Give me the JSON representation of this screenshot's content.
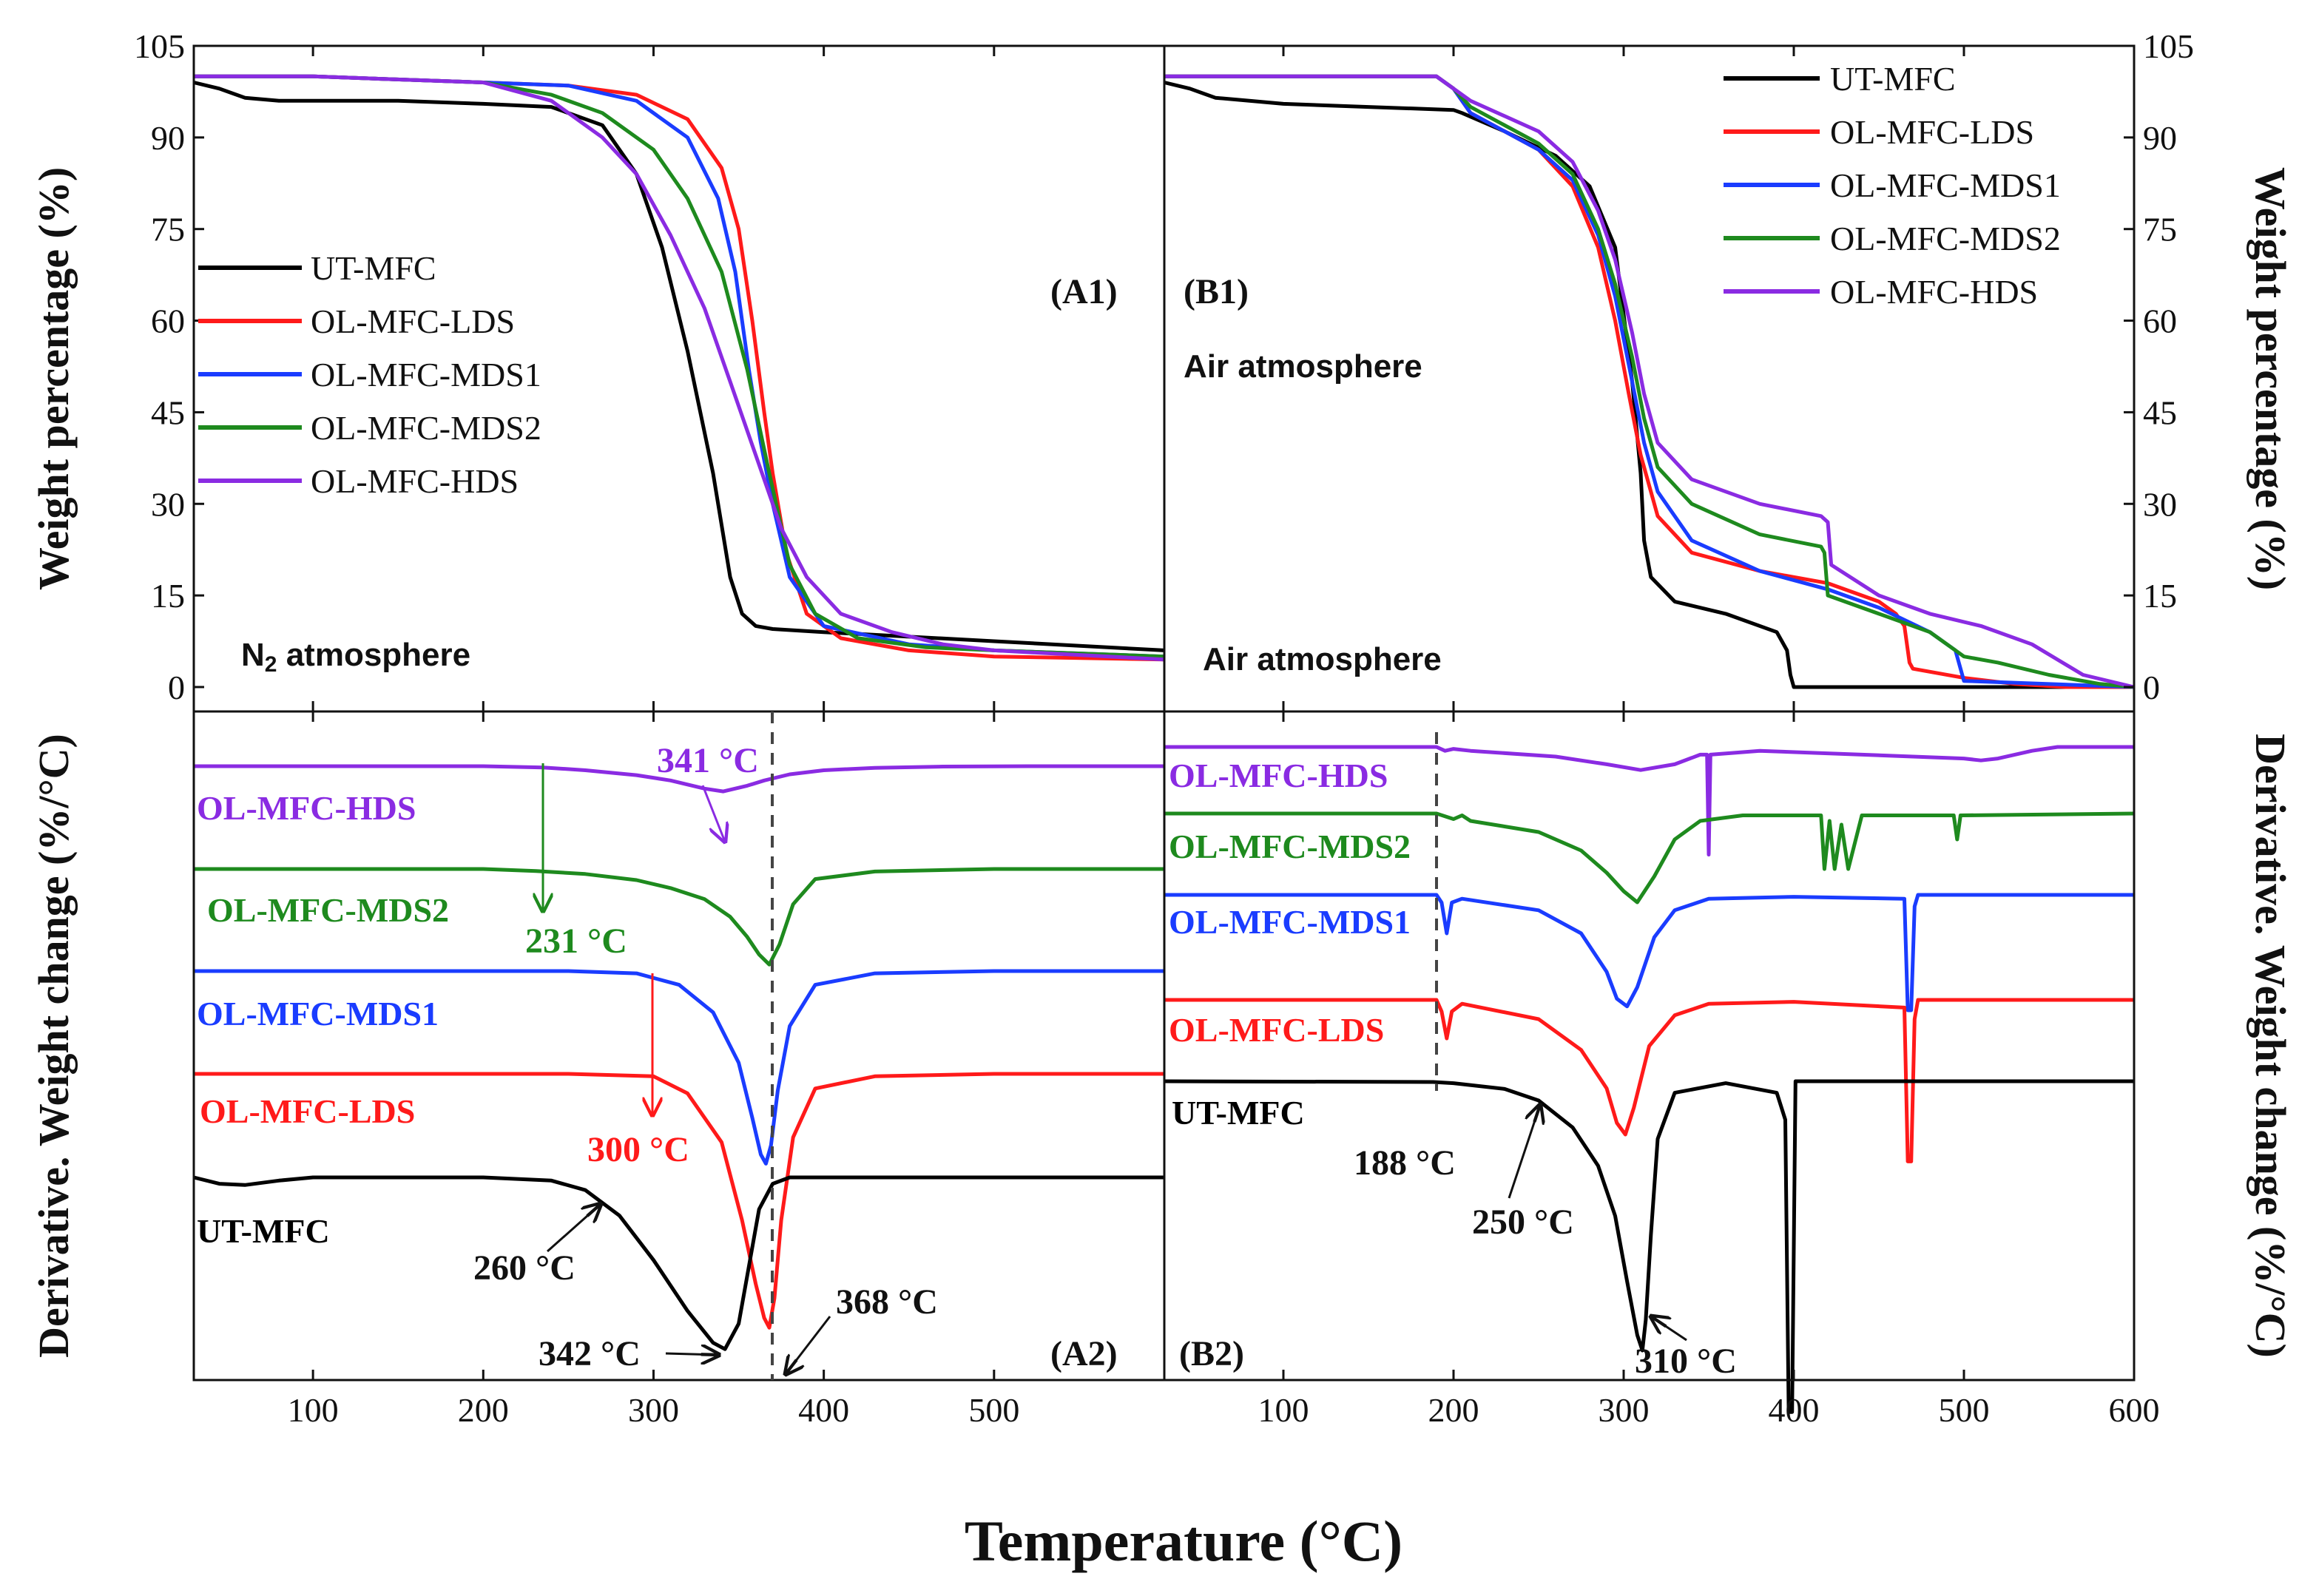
{
  "colors": {
    "UT-MFC": "#000000",
    "OL-MFC-LDS": "#ff1a1a",
    "OL-MFC-MDS1": "#1a3cff",
    "OL-MFC-MDS2": "#1e8a1e",
    "OL-MFC-HDS": "#8a2be2"
  },
  "labels": {
    "xlabel": "Temperature (°C)",
    "ylabel_top_left": "Weight percentage (%)",
    "ylabel_top_right": "Weight percentage (%)",
    "ylabel_bottom_left": "Derivative. Weight change (%/°C)",
    "ylabel_bottom_right": "Derivative. Weight change (%/°C)",
    "panel_A1": "(A1)",
    "panel_B1": "(B1)",
    "panel_A2": "(A2)",
    "panel_B2": "(B2)",
    "atm_A1_main": "N",
    "atm_A1_sub": "2",
    "atm_A1_rest": " atmosphere",
    "atm_B1_top": "Air atmosphere",
    "atm_B1_bottom": "Air atmosphere"
  },
  "chart_data": [
    {
      "id": "A1",
      "type": "line",
      "title": "(A1)",
      "xlabel": "Temperature (°C)",
      "ylabel": "Weight percentage (%)",
      "xlim": [
        30,
        600
      ],
      "ylim": [
        -4,
        105
      ],
      "xticks": [
        100,
        200,
        300,
        400,
        500
      ],
      "yticks": [
        0,
        15,
        30,
        45,
        60,
        75,
        90,
        105
      ],
      "legend": [
        "UT-MFC",
        "OL-MFC-LDS",
        "OL-MFC-MDS1",
        "OL-MFC-MDS2",
        "OL-MFC-HDS"
      ],
      "series": [
        {
          "name": "UT-MFC",
          "x": [
            30,
            45,
            60,
            80,
            100,
            150,
            200,
            240,
            270,
            290,
            305,
            320,
            335,
            345,
            352,
            360,
            370,
            400,
            500,
            600
          ],
          "y": [
            99,
            98,
            96.5,
            96,
            96,
            96,
            95.5,
            95,
            92,
            84,
            72,
            55,
            35,
            18,
            12,
            10,
            9.5,
            9,
            7.5,
            6
          ]
        },
        {
          "name": "OL-MFC-LDS",
          "x": [
            30,
            100,
            200,
            250,
            290,
            320,
            340,
            350,
            358,
            365,
            370,
            378,
            390,
            410,
            450,
            500,
            600
          ],
          "y": [
            100,
            100,
            99,
            98.5,
            97,
            93,
            85,
            75,
            60,
            45,
            35,
            22,
            12,
            8,
            6,
            5,
            4.5
          ]
        },
        {
          "name": "OL-MFC-MDS1",
          "x": [
            30,
            100,
            200,
            250,
            290,
            320,
            338,
            348,
            356,
            363,
            370,
            380,
            400,
            450,
            500,
            600
          ],
          "y": [
            100,
            100,
            99,
            98.5,
            96,
            90,
            80,
            68,
            52,
            40,
            30,
            18,
            10,
            7,
            6,
            5
          ]
        },
        {
          "name": "OL-MFC-MDS2",
          "x": [
            30,
            100,
            200,
            240,
            270,
            300,
            320,
            340,
            355,
            368,
            380,
            395,
            420,
            460,
            500,
            600
          ],
          "y": [
            100,
            100,
            99,
            97,
            94,
            88,
            80,
            68,
            52,
            35,
            20,
            12,
            8,
            6.5,
            6,
            5
          ]
        },
        {
          "name": "OL-MFC-HDS",
          "x": [
            30,
            100,
            200,
            240,
            270,
            290,
            310,
            330,
            345,
            360,
            375,
            390,
            410,
            440,
            470,
            500,
            600
          ],
          "y": [
            100,
            100,
            99,
            96,
            90,
            84,
            74,
            62,
            50,
            38,
            26,
            18,
            12,
            9,
            7,
            6,
            4.5
          ]
        }
      ]
    },
    {
      "id": "B1",
      "type": "line",
      "title": "(B1)",
      "xlabel": "Temperature (°C)",
      "ylabel": "Weight percentage (%)",
      "xlim": [
        30,
        600
      ],
      "ylim": [
        -4,
        105
      ],
      "xticks": [
        100,
        200,
        300,
        400,
        500,
        600
      ],
      "yticks": [
        0,
        15,
        30,
        45,
        60,
        75,
        90,
        105
      ],
      "legend": [
        "UT-MFC",
        "OL-MFC-LDS",
        "OL-MFC-MDS1",
        "OL-MFC-MDS2",
        "OL-MFC-HDS"
      ],
      "series": [
        {
          "name": "UT-MFC",
          "x": [
            30,
            45,
            60,
            80,
            100,
            150,
            200,
            205,
            230,
            260,
            280,
            295,
            305,
            310,
            312,
            316,
            330,
            360,
            390,
            396,
            398,
            400,
            600
          ],
          "y": [
            99,
            98,
            96.5,
            96,
            95.5,
            95,
            94.5,
            94,
            91,
            87,
            82,
            72,
            50,
            35,
            24,
            18,
            14,
            12,
            9,
            6,
            2,
            0,
            0
          ]
        },
        {
          "name": "OL-MFC-LDS",
          "x": [
            30,
            100,
            190,
            200,
            210,
            250,
            270,
            285,
            295,
            303,
            310,
            320,
            340,
            380,
            420,
            450,
            460,
            465,
            468,
            470,
            500,
            530,
            560,
            600
          ],
          "y": [
            100,
            100,
            100,
            98,
            94,
            88,
            82,
            72,
            60,
            48,
            38,
            28,
            22,
            19,
            17,
            14,
            12,
            10,
            4,
            3,
            1.5,
            0.5,
            0,
            0
          ]
        },
        {
          "name": "OL-MFC-MDS1",
          "x": [
            30,
            100,
            190,
            200,
            210,
            250,
            270,
            285,
            295,
            305,
            312,
            320,
            340,
            380,
            420,
            450,
            480,
            495,
            498,
            500,
            600
          ],
          "y": [
            100,
            100,
            100,
            98,
            94,
            88,
            83,
            74,
            64,
            50,
            40,
            32,
            24,
            19,
            16,
            13,
            9,
            6,
            3,
            1,
            0
          ]
        },
        {
          "name": "OL-MFC-MDS2",
          "x": [
            30,
            100,
            190,
            200,
            210,
            250,
            270,
            285,
            295,
            305,
            312,
            320,
            340,
            380,
            416,
            418,
            420,
            450,
            480,
            495,
            500,
            520,
            550,
            580,
            600
          ],
          "y": [
            100,
            100,
            100,
            98,
            95,
            89,
            84,
            75,
            66,
            54,
            44,
            36,
            30,
            25,
            23,
            22,
            15,
            12,
            9,
            6,
            5,
            4,
            2,
            0.5,
            0
          ]
        },
        {
          "name": "OL-MFC-HDS",
          "x": [
            30,
            100,
            190,
            200,
            210,
            250,
            270,
            285,
            295,
            305,
            312,
            320,
            340,
            380,
            416,
            420,
            422,
            450,
            480,
            510,
            540,
            570,
            600
          ],
          "y": [
            100,
            100,
            100,
            98,
            96,
            91,
            86,
            78,
            70,
            58,
            48,
            40,
            34,
            30,
            28,
            27,
            20,
            15,
            12,
            10,
            7,
            2,
            0
          ]
        }
      ]
    },
    {
      "id": "A2",
      "type": "line",
      "title": "(A2)",
      "xlabel": "Temperature (°C)",
      "ylabel": "Derivative. Weight change (%/°C)",
      "xlim": [
        30,
        600
      ],
      "xticks": [
        100,
        200,
        300,
        400,
        500
      ],
      "ylim_note": "stacked curves with vertical offsets, no y tick labels",
      "reference_line_x": 370,
      "series": [
        {
          "name": "OL-MFC-HDS",
          "label": "OL-MFC-HDS",
          "x": [
            30,
            200,
            235,
            260,
            290,
            310,
            330,
            341,
            355,
            365,
            380,
            400,
            430,
            470,
            520,
            600
          ],
          "y": [
            0,
            0,
            -0.03,
            -0.1,
            -0.22,
            -0.35,
            -0.55,
            -0.62,
            -0.48,
            -0.35,
            -0.2,
            -0.1,
            -0.04,
            -0.01,
            0,
            0
          ]
        },
        {
          "name": "OL-MFC-MDS2",
          "label": "OL-MFC-MDS2",
          "x": [
            30,
            200,
            231,
            260,
            290,
            310,
            330,
            345,
            355,
            362,
            368,
            374,
            382,
            395,
            430,
            500,
            600
          ],
          "y": [
            0,
            0,
            -0.04,
            -0.1,
            -0.22,
            -0.38,
            -0.6,
            -0.95,
            -1.35,
            -1.7,
            -1.9,
            -1.5,
            -0.7,
            -0.2,
            -0.05,
            0,
            0
          ]
        },
        {
          "name": "OL-MFC-MDS1",
          "label": "OL-MFC-MDS1",
          "x": [
            30,
            250,
            290,
            315,
            335,
            350,
            358,
            363,
            366,
            369,
            373,
            380,
            395,
            430,
            500,
            600
          ],
          "y": [
            0,
            0,
            -0.05,
            -0.3,
            -0.9,
            -2.0,
            -3.2,
            -4.0,
            -4.2,
            -3.8,
            -2.6,
            -1.2,
            -0.3,
            -0.05,
            0,
            0
          ]
        },
        {
          "name": "OL-MFC-LDS",
          "label": "OL-MFC-LDS",
          "x": [
            30,
            250,
            300,
            320,
            340,
            352,
            360,
            365,
            368,
            371,
            375,
            382,
            395,
            430,
            500,
            600
          ],
          "y": [
            0,
            0,
            -0.05,
            -0.4,
            -1.4,
            -3.0,
            -4.3,
            -5.0,
            -5.2,
            -4.6,
            -3.0,
            -1.3,
            -0.3,
            -0.05,
            0,
            0
          ]
        },
        {
          "name": "UT-MFC",
          "label": "UT-MFC",
          "x": [
            30,
            45,
            60,
            80,
            100,
            200,
            240,
            260,
            280,
            300,
            320,
            335,
            342,
            350,
            356,
            362,
            370,
            380,
            450,
            600
          ],
          "y": [
            0,
            -0.1,
            -0.12,
            -0.05,
            0,
            0,
            -0.05,
            -0.2,
            -0.6,
            -1.3,
            -2.1,
            -2.6,
            -2.7,
            -2.3,
            -1.4,
            -0.5,
            -0.1,
            0,
            0,
            0
          ]
        }
      ],
      "annotations": [
        {
          "text": "341 °C",
          "x": 341
        },
        {
          "text": "231 °C",
          "x": 231
        },
        {
          "text": "300 °C",
          "x": 300
        },
        {
          "text": "260 °C",
          "x": 260
        },
        {
          "text": "342 °C",
          "x": 342
        },
        {
          "text": "368 °C",
          "x": 368
        }
      ]
    },
    {
      "id": "B2",
      "type": "line",
      "title": "(B2)",
      "xlabel": "Temperature (°C)",
      "ylabel": "Derivative. Weight change (%/°C)",
      "xlim": [
        30,
        600
      ],
      "xticks": [
        100,
        200,
        300,
        400,
        500,
        600
      ],
      "ylim_note": "stacked curves with vertical offsets, no y tick labels",
      "reference_line_x": 188,
      "series": [
        {
          "name": "OL-MFC-HDS",
          "label": "OL-MFC-HDS",
          "x": [
            30,
            190,
            195,
            200,
            210,
            260,
            290,
            310,
            330,
            345,
            349,
            350,
            351,
            380,
            500,
            510,
            520,
            540,
            555,
            600
          ],
          "y": [
            0,
            0,
            -0.1,
            -0.05,
            -0.1,
            -0.25,
            -0.45,
            -0.6,
            -0.45,
            -0.2,
            -0.2,
            -2.8,
            -0.2,
            -0.1,
            -0.3,
            -0.35,
            -0.3,
            -0.1,
            0,
            0
          ]
        },
        {
          "name": "OL-MFC-MDS2",
          "label": "OL-MFC-MDS2",
          "x": [
            30,
            190,
            200,
            205,
            210,
            250,
            275,
            290,
            300,
            308,
            318,
            330,
            345,
            370,
            416,
            418,
            421,
            424,
            428,
            432,
            440,
            494,
            496,
            498,
            600
          ],
          "y": [
            0,
            0,
            -0.15,
            -0.05,
            -0.2,
            -0.5,
            -1.0,
            -1.6,
            -2.1,
            -2.4,
            -1.7,
            -0.7,
            -0.2,
            -0.05,
            -0.05,
            -1.5,
            -0.2,
            -1.5,
            -0.3,
            -1.5,
            -0.05,
            -0.05,
            -0.7,
            -0.05,
            0
          ]
        },
        {
          "name": "OL-MFC-MDS1",
          "label": "OL-MFC-MDS1",
          "x": [
            30,
            190,
            193,
            196,
            199,
            205,
            250,
            275,
            290,
            296,
            302,
            308,
            318,
            330,
            350,
            400,
            465,
            467,
            469,
            471,
            473,
            600
          ],
          "y": [
            0,
            0,
            -0.2,
            -1.0,
            -0.2,
            -0.1,
            -0.4,
            -1.0,
            -2.0,
            -2.7,
            -2.9,
            -2.4,
            -1.1,
            -0.4,
            -0.1,
            -0.05,
            -0.1,
            -3.0,
            -3.0,
            -0.3,
            0,
            0
          ]
        },
        {
          "name": "OL-MFC-LDS",
          "label": "OL-MFC-LDS",
          "x": [
            30,
            190,
            193,
            196,
            199,
            205,
            250,
            275,
            290,
            296,
            301,
            306,
            315,
            330,
            350,
            400,
            465,
            467,
            469,
            471,
            473,
            600
          ],
          "y": [
            0,
            0,
            -0.3,
            -1.0,
            -0.3,
            -0.1,
            -0.5,
            -1.3,
            -2.3,
            -3.2,
            -3.5,
            -2.8,
            -1.2,
            -0.4,
            -0.1,
            -0.05,
            -0.2,
            -4.2,
            -4.2,
            -0.5,
            0,
            0
          ]
        },
        {
          "name": "UT-MFC",
          "label": "UT-MFC",
          "x": [
            30,
            188,
            200,
            230,
            250,
            270,
            285,
            295,
            302,
            308,
            311,
            313,
            316,
            320,
            330,
            360,
            390,
            395,
            397,
            399,
            401,
            600
          ],
          "y": [
            0,
            -0.02,
            -0.05,
            -0.2,
            -0.5,
            -1.2,
            -2.2,
            -3.5,
            -5.2,
            -6.6,
            -7.0,
            -6.2,
            -4.0,
            -1.5,
            -0.3,
            -0.05,
            -0.3,
            -1.0,
            -8.6,
            -8.6,
            0,
            0
          ]
        }
      ],
      "annotations": [
        {
          "text": "188 °C",
          "x": 188
        },
        {
          "text": "250 °C",
          "x": 250
        },
        {
          "text": "310 °C",
          "x": 310
        }
      ]
    }
  ]
}
